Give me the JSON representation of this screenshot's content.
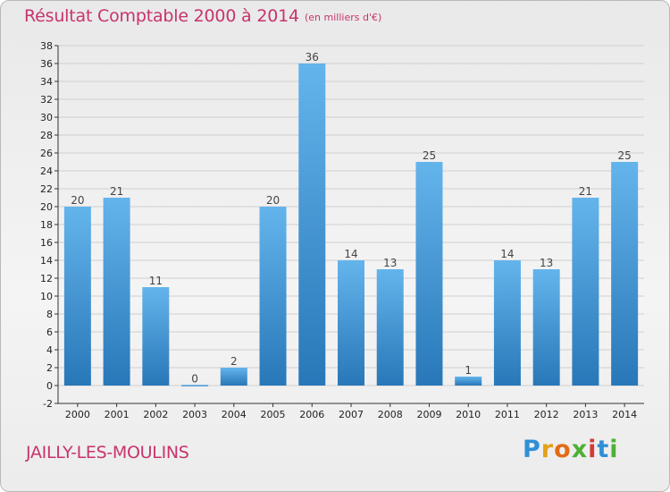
{
  "chart_data": {
    "type": "bar",
    "title": "Résultat Comptable 2000 à 2014",
    "subtitle": "(en milliers d'€)",
    "categories": [
      "2000",
      "2001",
      "2002",
      "2003",
      "2004",
      "2005",
      "2006",
      "2007",
      "2008",
      "2009",
      "2010",
      "2011",
      "2012",
      "2013",
      "2014"
    ],
    "values": [
      20,
      21,
      11,
      0,
      2,
      20,
      36,
      14,
      13,
      25,
      1,
      14,
      13,
      21,
      25
    ],
    "ylim": [
      -2,
      38
    ],
    "yticks": [
      -2,
      0,
      2,
      4,
      6,
      8,
      10,
      12,
      14,
      16,
      18,
      20,
      22,
      24,
      26,
      28,
      30,
      32,
      34,
      36,
      38
    ],
    "xlabel": "",
    "ylabel": "",
    "grid": true
  },
  "footer": {
    "commune": "JAILLY-LES-MOULINS"
  },
  "logo": {
    "letters": [
      "P",
      "r",
      "o",
      "x",
      "i",
      "t",
      "i"
    ],
    "colors": [
      "#2f8fd6",
      "#e3a118",
      "#e26b18",
      "#4db035",
      "#d33b3b",
      "#2f8fd6",
      "#4db035"
    ]
  },
  "colors": {
    "title": "#c8336d",
    "bar_top": "#64b4ec",
    "bar_bottom": "#2877b8",
    "grid": "#cfcfcf"
  }
}
